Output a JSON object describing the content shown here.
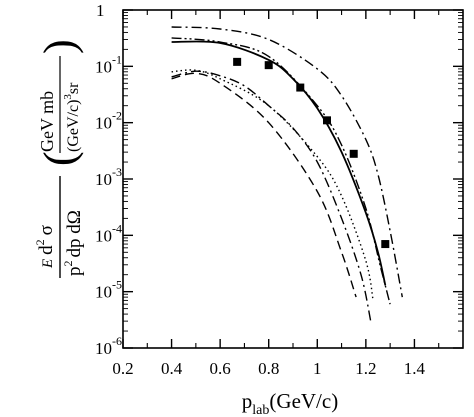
{
  "chart_data": {
    "type": "line",
    "title": "",
    "x_scale": "linear",
    "y_scale": "log",
    "xlim": [
      0.2,
      1.6
    ],
    "ylim": [
      1e-06,
      1
    ],
    "grid": false,
    "legend": "none",
    "x_ticks": [
      "0.2",
      "0.4",
      "0.6",
      "0.8",
      "1",
      "1.2",
      "1.4"
    ],
    "y_ticks": [
      {
        "base": "",
        "exp": "",
        "text": "1"
      },
      {
        "base": "10",
        "exp": "-1",
        "text": ""
      },
      {
        "base": "10",
        "exp": "-2",
        "text": ""
      },
      {
        "base": "10",
        "exp": "-3",
        "text": ""
      },
      {
        "base": "10",
        "exp": "-4",
        "text": ""
      },
      {
        "base": "10",
        "exp": "-5",
        "text": ""
      },
      {
        "base": "10",
        "exp": "-6",
        "text": ""
      }
    ],
    "xlabel": {
      "main": "p",
      "sub": "lab",
      "unit": "(GeV/c)"
    },
    "ylabel": {
      "prefix_italic": "E",
      "d2": "d",
      "exp2": "2",
      "sigma": "σ",
      "denominator": "p",
      "denominator_exp": "2",
      "denominator_rest": "dp dΩ",
      "unit_num": "GeV mb",
      "unit_den": "(GeV/c)",
      "unit_den_exp": "3",
      "unit_den_rest": "sr"
    },
    "series": [
      {
        "style": "markers",
        "points": [
          [
            0.67,
            0.12
          ],
          [
            0.8,
            0.105
          ],
          [
            0.93,
            0.042
          ],
          [
            1.04,
            0.011
          ],
          [
            1.15,
            0.0028
          ],
          [
            1.28,
            7e-05
          ]
        ]
      },
      {
        "style": "dash-dot",
        "points": [
          [
            0.4,
            0.5
          ],
          [
            0.6,
            0.46
          ],
          [
            0.8,
            0.3
          ],
          [
            1.0,
            0.09
          ],
          [
            1.1,
            0.03
          ],
          [
            1.2,
            0.005
          ],
          [
            1.25,
            0.0012
          ],
          [
            1.3,
            0.00012
          ],
          [
            1.35,
            8e-06
          ]
        ]
      },
      {
        "style": "solid",
        "points": [
          [
            0.4,
            0.27
          ],
          [
            0.6,
            0.26
          ],
          [
            0.8,
            0.13
          ],
          [
            0.9,
            0.06
          ],
          [
            1.0,
            0.018
          ],
          [
            1.1,
            0.003
          ],
          [
            1.2,
            0.00025
          ],
          [
            1.25,
            5e-05
          ],
          [
            1.28,
            1.3e-05
          ]
        ]
      },
      {
        "style": "dash-dot-dot",
        "points": [
          [
            0.4,
            0.32
          ],
          [
            0.6,
            0.27
          ],
          [
            0.8,
            0.15
          ],
          [
            1.0,
            0.02
          ],
          [
            1.1,
            0.004
          ],
          [
            1.2,
            0.0003
          ],
          [
            1.26,
            2.8e-05
          ],
          [
            1.3,
            6e-06
          ]
        ]
      },
      {
        "style": "dotted",
        "points": [
          [
            0.4,
            0.08
          ],
          [
            0.5,
            0.085
          ],
          [
            0.6,
            0.06
          ],
          [
            0.8,
            0.02
          ],
          [
            1.0,
            0.0025
          ],
          [
            1.1,
            0.0005
          ],
          [
            1.2,
            3.5e-05
          ],
          [
            1.23,
            7e-06
          ]
        ]
      },
      {
        "style": "dash-dot",
        "points": [
          [
            0.4,
            0.065
          ],
          [
            0.5,
            0.082
          ],
          [
            0.6,
            0.068
          ],
          [
            0.7,
            0.045
          ],
          [
            0.8,
            0.02
          ],
          [
            0.9,
            0.008
          ],
          [
            1.0,
            0.002
          ],
          [
            1.1,
            0.0002
          ],
          [
            1.18,
            2e-05
          ],
          [
            1.22,
            3e-06
          ]
        ]
      },
      {
        "style": "dashed",
        "points": [
          [
            0.4,
            0.06
          ],
          [
            0.5,
            0.075
          ],
          [
            0.6,
            0.05
          ],
          [
            0.8,
            0.01
          ],
          [
            1.0,
            0.0006
          ],
          [
            1.1,
            5e-05
          ],
          [
            1.16,
            8e-06
          ]
        ]
      }
    ]
  }
}
